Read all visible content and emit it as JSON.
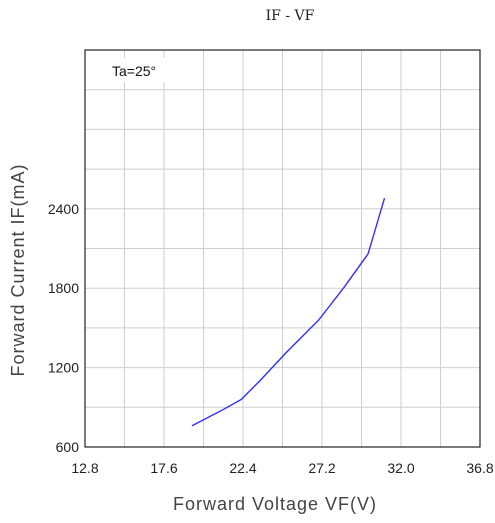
{
  "chart_data": {
    "type": "line",
    "title": "IF - VF",
    "xlabel": "Forward Voltage VF(V)",
    "ylabel": "Forward Current IF(mA)",
    "annotation": "Ta=25°",
    "xlim": [
      12.8,
      36.8
    ],
    "ylim": [
      600,
      3600
    ],
    "x_ticks": [
      12.8,
      17.6,
      22.4,
      27.2,
      32.0,
      36.8
    ],
    "x_tick_labels": [
      "12.8",
      "17.6",
      "22.4",
      "27.2",
      "32.0",
      "36.8"
    ],
    "y_ticks": [
      600,
      1200,
      1800,
      2400
    ],
    "y_tick_labels": [
      "600",
      "1200",
      "1800",
      "2400"
    ],
    "grid": true,
    "series": [
      {
        "color": "#3030ff",
        "x": [
          19.3,
          21.0,
          22.3,
          23.5,
          25.0,
          27.0,
          28.5,
          30.0,
          31.0
        ],
        "y": [
          760,
          870,
          960,
          1110,
          1310,
          1560,
          1800,
          2060,
          2480
        ]
      }
    ]
  }
}
